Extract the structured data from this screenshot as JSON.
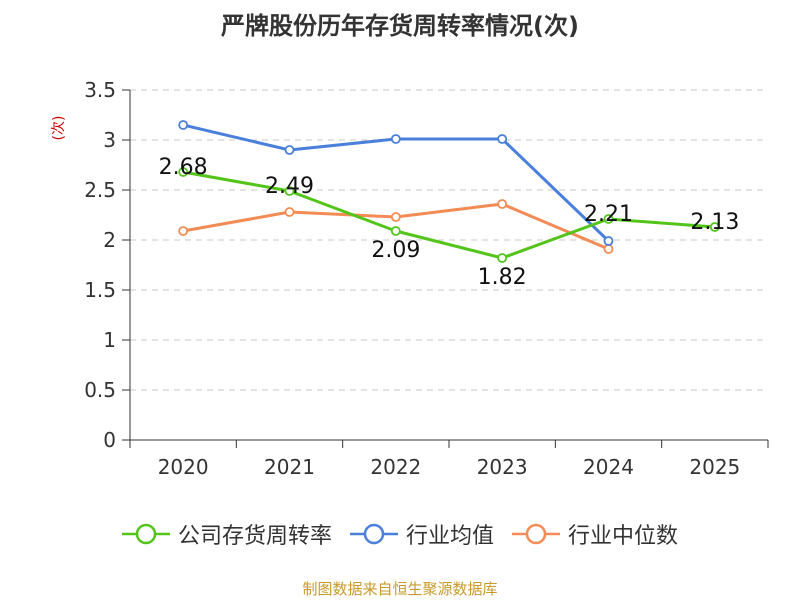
{
  "chart_data": {
    "type": "line",
    "title": "严牌股份历年存货周转率情况(次)",
    "ylabel": "(次)",
    "xlabel": "",
    "categories": [
      "2020",
      "2021",
      "2022",
      "2023",
      "2024",
      "2025"
    ],
    "ylim": [
      0,
      3.5
    ],
    "yticks": [
      "0",
      "0.5",
      "1",
      "1.5",
      "2",
      "2.5",
      "3",
      "3.5"
    ],
    "grid": true,
    "legend_position": "bottom",
    "series": [
      {
        "name": "公司存货周转率",
        "color": "#52c41a",
        "values": [
          2.68,
          2.49,
          2.09,
          1.82,
          2.21,
          2.13
        ],
        "labels": [
          "2.68",
          "2.49",
          "2.09",
          "1.82",
          "2.21",
          "2.13"
        ]
      },
      {
        "name": "行业均值",
        "color": "#4a7fdb",
        "values": [
          3.15,
          2.9,
          3.01,
          3.01,
          1.99,
          null
        ]
      },
      {
        "name": "行业中位数",
        "color": "#f28b54",
        "values": [
          2.09,
          2.28,
          2.23,
          2.36,
          1.91,
          null
        ]
      }
    ]
  },
  "source": "制图数据来自恒生聚源数据库"
}
